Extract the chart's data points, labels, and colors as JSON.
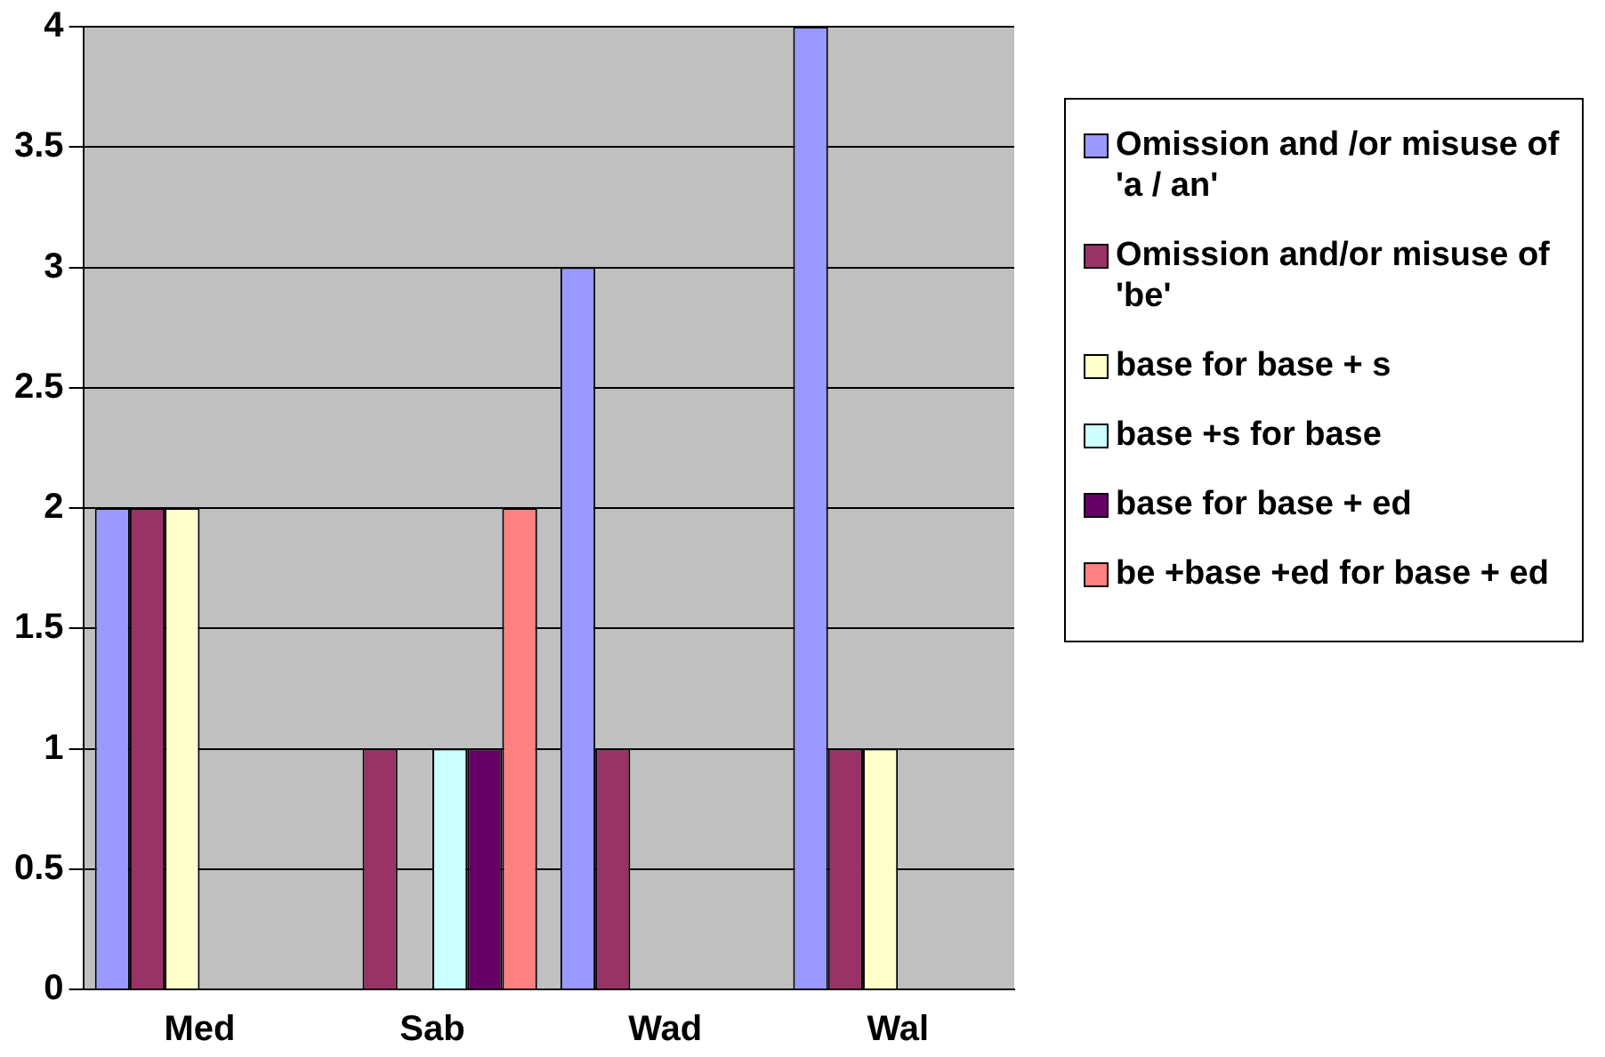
{
  "chart_data": {
    "type": "bar",
    "categories": [
      "Med",
      "Sab",
      "Wad",
      "Wal"
    ],
    "series": [
      {
        "name": "Omission and /or misuse of 'a / an'",
        "color": "#9999ff",
        "values": [
          2,
          0,
          3,
          4
        ]
      },
      {
        "name": "Omission and/or misuse of 'be'",
        "color": "#993366",
        "values": [
          2,
          1,
          1,
          1
        ]
      },
      {
        "name": "base for base + s",
        "color": "#ffffcc",
        "values": [
          2,
          0,
          0,
          1
        ]
      },
      {
        "name": "base +s for base",
        "color": "#ccffff",
        "values": [
          0,
          1,
          0,
          0
        ]
      },
      {
        "name": "base for base + ed",
        "color": "#660066",
        "values": [
          0,
          1,
          0,
          0
        ]
      },
      {
        "name": "be +base +ed for base + ed",
        "color": "#ff8080",
        "values": [
          0,
          2,
          0,
          0
        ]
      }
    ],
    "ylim": [
      0,
      4
    ],
    "yticks": [
      0,
      0.5,
      1,
      1.5,
      2,
      2.5,
      3,
      3.5,
      4
    ],
    "grid": "y",
    "legend": "right"
  }
}
